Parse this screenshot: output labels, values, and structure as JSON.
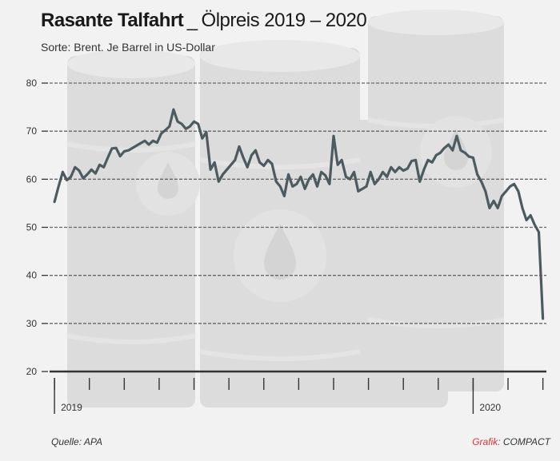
{
  "header": {
    "title_bold": "Rasante Talfahrt",
    "title_sep": "_",
    "title_rest": "Ölpreis 2019 – 2020",
    "subtitle": "Sorte: Brent. Je Barrel in US-Dollar"
  },
  "footer": {
    "source": "Quelle: APA",
    "credit_label": "Grafik:",
    "credit_name": "COMPACT"
  },
  "colors": {
    "line": "#4d5a60",
    "grid": "#666666",
    "axis": "#333333",
    "credit_accent": "#dd3333"
  },
  "chart_data": {
    "type": "line",
    "title": "Rasante Talfahrt _ Ölpreis 2019 – 2020",
    "subtitle": "Sorte: Brent. Je Barrel in US-Dollar",
    "xlabel": "",
    "ylabel": "",
    "ylim": [
      20,
      80
    ],
    "yticks": [
      20,
      30,
      40,
      50,
      60,
      70,
      80
    ],
    "grid": true,
    "legend": "none",
    "year_labels": [
      {
        "label": "2019",
        "week": 0
      },
      {
        "label": "2020",
        "week": 60
      }
    ],
    "x_tick_weeks": [
      0,
      5,
      10,
      15,
      20,
      25,
      30,
      35,
      40,
      45,
      50,
      55,
      60,
      65,
      70
    ],
    "x_domain_weeks": [
      -0.7,
      70.5
    ],
    "series": [
      {
        "values": [
          55.3,
          58.5,
          61.5,
          59.8,
          60.5,
          62.5,
          61.8,
          60.2,
          61.0,
          62.0,
          61.2,
          63.0,
          62.5,
          64.5,
          66.4,
          66.5,
          64.8,
          65.8,
          66.0,
          66.5,
          67.0,
          67.5,
          68.0,
          67.2,
          68.0,
          67.6,
          69.5,
          70.2,
          71.0,
          74.5,
          72.0,
          71.5,
          70.5,
          71.0,
          72.0,
          71.5,
          68.5,
          69.8,
          62.0,
          63.5,
          59.5,
          61.0,
          62.0,
          63.0,
          64.0,
          66.8,
          64.5,
          62.5,
          65.0,
          66.0,
          63.5,
          62.8,
          64.0,
          63.2,
          59.5,
          58.5,
          56.5,
          61.0,
          58.5,
          59.0,
          60.5,
          58.0,
          60.0,
          61.0,
          58.5,
          61.5,
          60.8,
          59.0,
          69.0,
          63.0,
          64.0,
          60.5,
          60.0,
          61.5,
          57.5,
          58.0,
          58.5,
          61.5,
          59.0,
          60.0,
          61.5,
          60.5,
          62.5,
          61.5,
          62.5,
          61.8,
          62.2,
          63.8,
          64.0,
          59.5,
          62.0,
          64.0,
          63.5,
          65.0,
          65.5,
          66.5,
          67.2,
          66.0,
          69.0,
          66.0,
          65.5,
          64.7,
          64.5,
          61.0,
          59.5,
          57.5,
          54.0,
          55.5,
          54.0,
          56.5,
          57.5,
          58.5,
          59.0,
          57.5,
          54.0,
          51.5,
          52.5,
          50.5,
          49.0,
          31.0
        ]
      }
    ]
  }
}
